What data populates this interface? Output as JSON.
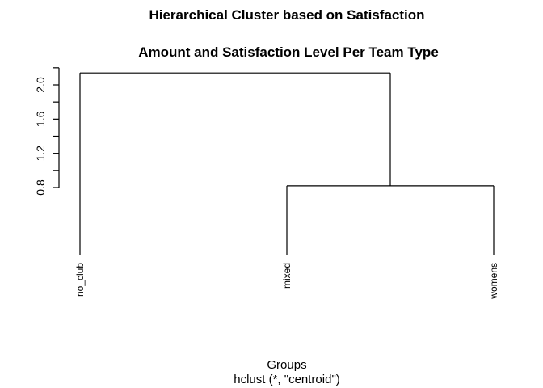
{
  "chart_data": {
    "type": "dendrogram",
    "title": "Hierarchical Cluster based on Satisfaction",
    "subtitle": "Amount and Satisfaction Level Per Team Type",
    "xlabel": "Groups",
    "sub_xlabel": "hclust (*, \"centroid\")",
    "ylabel": "",
    "ylim": [
      0.4,
      2.2
    ],
    "y_ticks": [
      "0.8",
      "1.2",
      "1.6",
      "2.0"
    ],
    "leaves": [
      "no_club",
      "mixed",
      "womens"
    ],
    "merges": [
      {
        "members": [
          "mixed",
          "womens"
        ],
        "height": 0.82
      },
      {
        "members": [
          "no_club",
          "mixed+womens"
        ],
        "height": 2.14
      }
    ],
    "leaf_bottom": 0.0
  }
}
